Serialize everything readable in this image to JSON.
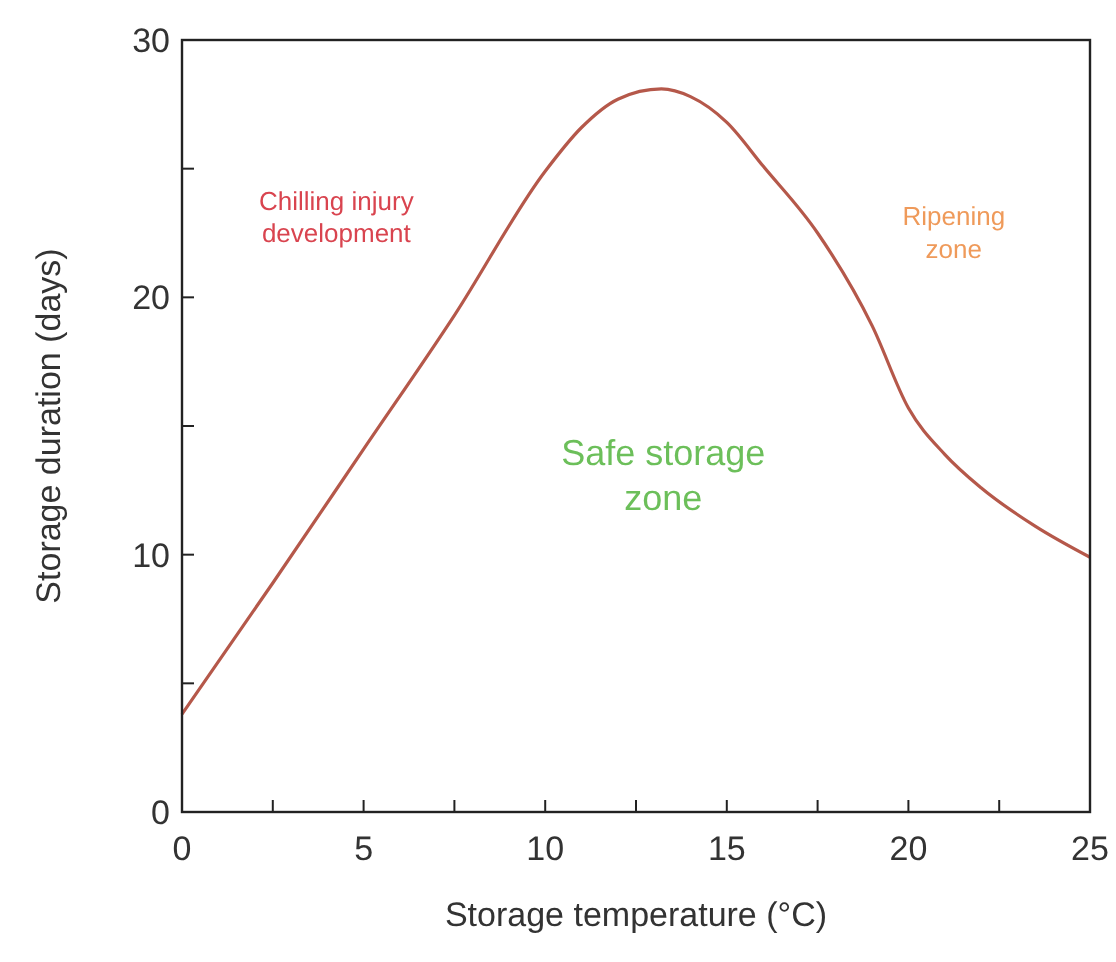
{
  "chart_data": {
    "type": "line",
    "xlabel": "Storage temperature (°C)",
    "ylabel": "Storage duration (days)",
    "x": [
      0,
      2.5,
      5,
      7.5,
      10,
      11,
      12,
      13.2,
      14,
      15,
      16,
      17.5,
      19,
      20,
      21,
      22,
      23.5,
      25
    ],
    "series": [
      {
        "color": "#b5584a",
        "values": [
          3.8,
          8.9,
          14.1,
          19.3,
          24.9,
          26.6,
          27.7,
          28.1,
          27.8,
          26.8,
          25.1,
          22.5,
          18.9,
          15.7,
          13.9,
          12.6,
          11.1,
          9.9
        ]
      }
    ],
    "xlim": [
      0,
      25
    ],
    "ylim": [
      0,
      30
    ],
    "xticks": [
      0,
      {
        "value": 2.5,
        "label": null
      },
      5,
      {
        "value": 7.5,
        "label": null
      },
      10,
      {
        "value": 12.5,
        "label": null
      },
      15,
      {
        "value": 17.5,
        "label": null
      },
      20,
      {
        "value": 22.5,
        "label": null
      },
      25
    ],
    "yticks": [
      0,
      {
        "value": 5,
        "label": null
      },
      10,
      {
        "value": 15,
        "label": null
      },
      20,
      {
        "value": 25,
        "label": null
      },
      30
    ],
    "annotations": [
      "Chilling injury\ndevelopment",
      "Ripening\nzone",
      "Safe storage\nzone"
    ],
    "grid": false,
    "marker": "none",
    "line_style": "solid"
  }
}
